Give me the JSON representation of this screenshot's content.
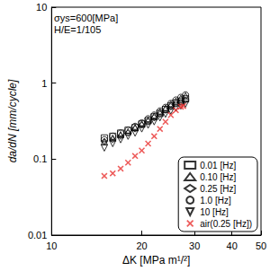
{
  "chart_data": {
    "type": "scatter",
    "annotations": [
      "σys=600[MPa]",
      "H/E=1/105"
    ],
    "x_label": "ΔK [MPa m¹/²]",
    "y_label": "da/dN [mm/cycle]",
    "log": true,
    "grid": false,
    "legend": "lower right",
    "xlim": [
      10,
      50
    ],
    "xticks": [
      10,
      20,
      30,
      40,
      50
    ],
    "ylim": [
      0.01,
      10
    ],
    "yticks": [
      0.01,
      0.1,
      1,
      10
    ],
    "series": [
      {
        "name": "0.01 [Hz]",
        "marker": "square",
        "color": "#000000",
        "x": [
          15,
          16,
          17,
          18,
          19,
          20,
          21,
          22,
          23,
          24,
          25,
          26,
          27,
          28
        ],
        "values": [
          0.19,
          0.2,
          0.22,
          0.24,
          0.26,
          0.29,
          0.32,
          0.36,
          0.4,
          0.45,
          0.5,
          0.55,
          0.58,
          0.62
        ]
      },
      {
        "name": "0.10 [Hz]",
        "marker": "triangle",
        "color": "#000000",
        "x": [
          15,
          16,
          17,
          18,
          19,
          20,
          21,
          22,
          23,
          24,
          25,
          26,
          27,
          28
        ],
        "values": [
          0.17,
          0.19,
          0.21,
          0.23,
          0.26,
          0.29,
          0.33,
          0.37,
          0.42,
          0.47,
          0.53,
          0.58,
          0.63,
          0.68
        ]
      },
      {
        "name": "0.25 [Hz]",
        "marker": "diamond",
        "color": "#000000",
        "x": [
          15,
          16,
          17,
          18,
          19,
          20,
          21,
          22,
          23,
          24,
          25,
          26,
          27,
          28
        ],
        "values": [
          0.17,
          0.18,
          0.2,
          0.22,
          0.25,
          0.28,
          0.31,
          0.35,
          0.39,
          0.44,
          0.49,
          0.53,
          0.56,
          0.6
        ]
      },
      {
        "name": "1.0 [Hz]",
        "marker": "circle",
        "color": "#000000",
        "x": [
          15,
          16,
          17,
          18,
          19,
          20,
          21,
          22,
          23,
          24,
          25,
          26,
          27,
          28
        ],
        "values": [
          0.18,
          0.2,
          0.22,
          0.24,
          0.27,
          0.3,
          0.34,
          0.38,
          0.43,
          0.48,
          0.54,
          0.6,
          0.65,
          0.7
        ]
      },
      {
        "name": "10 [Hz]",
        "marker": "triangle_down",
        "color": "#000000",
        "x": [
          15,
          16,
          17,
          18,
          19,
          20,
          21,
          22,
          23,
          24,
          25,
          26,
          27,
          28
        ],
        "values": [
          0.14,
          0.16,
          0.18,
          0.2,
          0.22,
          0.25,
          0.28,
          0.31,
          0.35,
          0.39,
          0.43,
          0.47,
          0.5,
          0.53
        ]
      },
      {
        "name": "air(0.25 [Hz])",
        "marker": "x",
        "color": "#e8312f",
        "x": [
          15,
          16,
          17,
          18,
          19,
          20,
          21,
          22,
          23,
          24,
          25,
          26,
          27,
          27.5
        ],
        "values": [
          0.06,
          0.065,
          0.075,
          0.09,
          0.11,
          0.13,
          0.16,
          0.2,
          0.25,
          0.31,
          0.38,
          0.44,
          0.49,
          0.5
        ]
      }
    ]
  }
}
